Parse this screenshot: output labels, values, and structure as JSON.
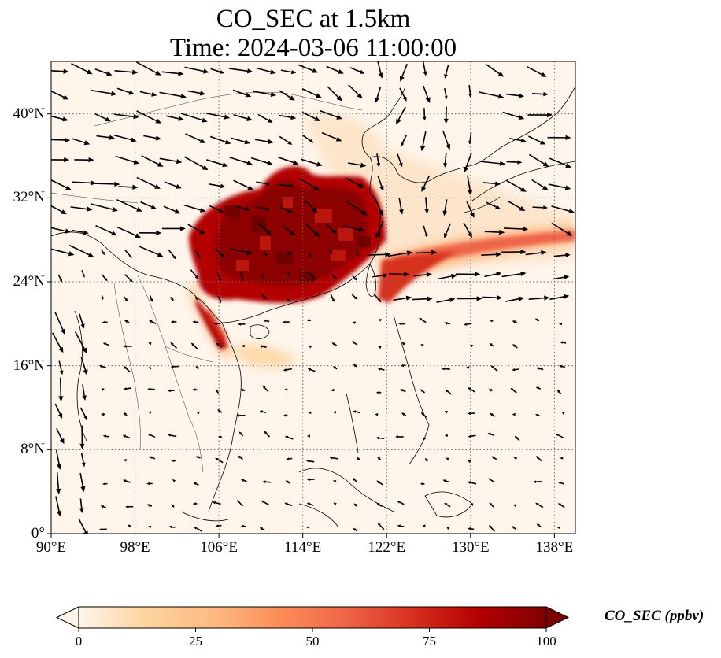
{
  "title_line1": "CO_SEC at 1.5km",
  "title_line2": "Time: 2024-03-06 11:00:00",
  "map": {
    "lon_range": [
      90,
      140
    ],
    "lat_range": [
      0,
      45
    ],
    "lon_ticks": [
      "90°E",
      "98°E",
      "106°E",
      "114°E",
      "122°E",
      "130°E",
      "138°E"
    ],
    "lon_tick_values": [
      90,
      98,
      106,
      114,
      122,
      130,
      138
    ],
    "lat_ticks": [
      "0°",
      "8°N",
      "16°N",
      "24°N",
      "32°N",
      "40°N"
    ],
    "lat_tick_values": [
      0,
      8,
      16,
      24,
      32,
      40
    ],
    "gridlines": "dotted",
    "plume_color_max": "#7f0000",
    "background_color": "#fff5eb"
  },
  "colorbar": {
    "label": "CO_SEC (ppbv)",
    "ticks": [
      "0",
      "25",
      "50",
      "75",
      "100"
    ],
    "tick_values": [
      0,
      25,
      50,
      75,
      100
    ],
    "range": [
      0,
      100
    ],
    "extend": "both",
    "colormap": "OrRd",
    "colors": [
      "#fff5eb",
      "#fdd49e",
      "#fdbb84",
      "#fc8d59",
      "#ef6548",
      "#d7301f",
      "#b30000",
      "#7f0000"
    ]
  }
}
